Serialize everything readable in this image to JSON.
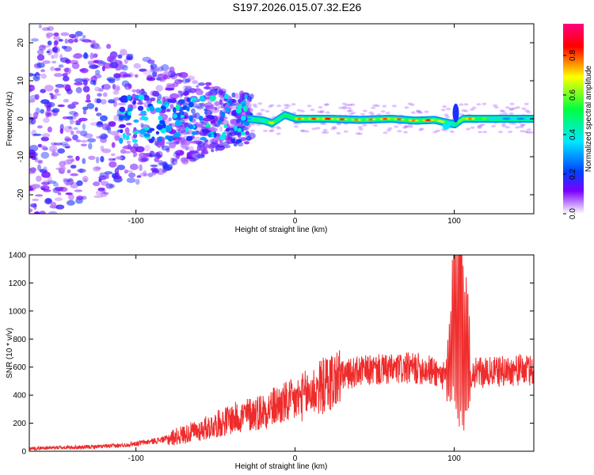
{
  "title": "S197.2026.015.07.32.E26",
  "colors": {
    "signal": "#ef2b2b",
    "spectrum_low": "#ffffff",
    "spectrum_purple": "#7b00ff",
    "spectrum_blue": "#0040ff",
    "spectrum_cyan": "#00e8ff",
    "spectrum_green": "#00ff40",
    "spectrum_yellow": "#ffff00",
    "spectrum_red": "#ff0000",
    "spectrum_magenta": "#ff0080"
  },
  "chart_data": [
    {
      "type": "heatmap",
      "title": "S197.2026.015.07.32.E26",
      "xlabel": "Height of straight line (km)",
      "ylabel": "Frequency (Hz)",
      "xlim": [
        -167,
        150
      ],
      "ylim": [
        -25,
        25
      ],
      "xticks": [
        -100,
        0,
        100
      ],
      "yticks": [
        -20,
        -10,
        0,
        10,
        20
      ],
      "colorbar": {
        "label": "Normalized spectral amplitude",
        "range": [
          0.0,
          0.96
        ],
        "ticks": [
          "0.0",
          "0.2",
          "0.4",
          "0.6",
          "0.8"
        ],
        "tick_values": [
          0.0,
          0.2,
          0.4,
          0.6,
          0.8
        ]
      },
      "description_points": [
        {
          "x": -30,
          "freq": 0.0,
          "amp": 0.45
        },
        {
          "x": -20,
          "freq": -0.5,
          "amp": 0.55
        },
        {
          "x": -15,
          "freq": -1.2,
          "amp": 0.75
        },
        {
          "x": -7,
          "freq": 1.0,
          "amp": 0.5
        },
        {
          "x": 0,
          "freq": 0.0,
          "amp": 0.8
        },
        {
          "x": 20,
          "freq": 0.0,
          "amp": 0.9
        },
        {
          "x": 40,
          "freq": -0.3,
          "amp": 0.8
        },
        {
          "x": 60,
          "freq": 0.0,
          "amp": 0.85
        },
        {
          "x": 75,
          "freq": -0.5,
          "amp": 0.8
        },
        {
          "x": 87,
          "freq": -0.3,
          "amp": 0.9
        },
        {
          "x": 100,
          "freq": -1.5,
          "amp": 0.45
        },
        {
          "x": 105,
          "freq": 0.0,
          "amp": 0.9
        },
        {
          "x": 130,
          "freq": 0.0,
          "amp": 0.4
        }
      ]
    },
    {
      "type": "line",
      "xlabel": "Height of straight line (km)",
      "ylabel": "SNR (10 * v/v)",
      "xlim": [
        -167,
        150
      ],
      "ylim": [
        0,
        1400
      ],
      "xticks": [
        -100,
        0,
        100
      ],
      "yticks": [
        0,
        200,
        400,
        600,
        800,
        1000,
        1200,
        1400
      ],
      "series": [
        {
          "name": "SNR",
          "x": [
            -167,
            -150,
            -130,
            -110,
            -100,
            -90,
            -80,
            -70,
            -60,
            -50,
            -40,
            -30,
            -20,
            -10,
            0,
            10,
            20,
            30,
            40,
            50,
            60,
            70,
            80,
            90,
            95,
            98,
            100,
            102,
            104,
            106,
            108,
            110,
            120,
            130,
            140,
            150
          ],
          "values": [
            20,
            25,
            30,
            40,
            55,
            70,
            90,
            120,
            150,
            190,
            230,
            260,
            290,
            330,
            360,
            420,
            480,
            540,
            570,
            580,
            580,
            590,
            590,
            560,
            520,
            700,
            1100,
            800,
            1380,
            600,
            800,
            560,
            560,
            570,
            580,
            575
          ]
        }
      ]
    }
  ]
}
